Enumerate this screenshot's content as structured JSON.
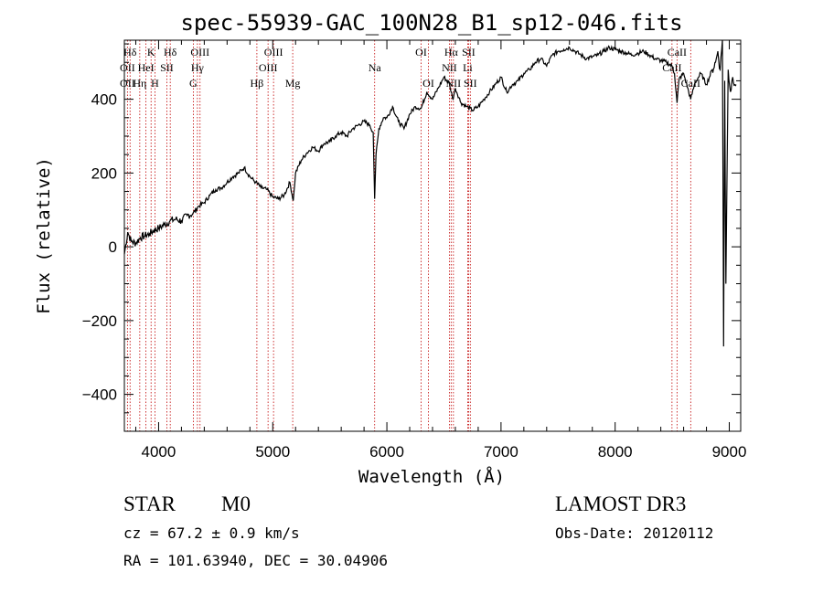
{
  "chart_data": {
    "type": "line",
    "title": "spec-55939-GAC_100N28_B1_sp12-046.fits",
    "xlabel": "Wavelength (Å)",
    "ylabel": "Flux (relative)",
    "xlim": [
      3700,
      9100
    ],
    "ylim": [
      -500,
      560
    ],
    "xticks": [
      4000,
      5000,
      6000,
      7000,
      8000,
      9000
    ],
    "yticks": [
      -400,
      -200,
      0,
      200,
      400
    ],
    "grid": false,
    "series": [
      {
        "x": [
          3700,
          3730,
          3760,
          3800,
          3840,
          3880,
          3920,
          3960,
          4000,
          4050,
          4100,
          4150,
          4200,
          4250,
          4300,
          4350,
          4400,
          4450,
          4500,
          4550,
          4600,
          4650,
          4700,
          4750,
          4800,
          4850,
          4900,
          4950,
          5000,
          5050,
          5100,
          5150,
          5180,
          5200,
          5250,
          5300,
          5350,
          5400,
          5450,
          5500,
          5550,
          5600,
          5650,
          5700,
          5750,
          5800,
          5850,
          5880,
          5893,
          5905,
          5930,
          5970,
          6000,
          6050,
          6100,
          6150,
          6200,
          6250,
          6300,
          6350,
          6400,
          6450,
          6500,
          6550,
          6563,
          6580,
          6600,
          6650,
          6700,
          6750,
          6800,
          6850,
          6900,
          6950,
          7000,
          7050,
          7100,
          7150,
          7200,
          7250,
          7300,
          7350,
          7400,
          7450,
          7500,
          7550,
          7600,
          7650,
          7700,
          7750,
          7800,
          7850,
          7900,
          7950,
          8000,
          8050,
          8100,
          8150,
          8200,
          8250,
          8300,
          8350,
          8400,
          8450,
          8498,
          8520,
          8542,
          8560,
          8600,
          8662,
          8700,
          8750,
          8800,
          8850,
          8880,
          8900,
          8920,
          8940,
          8950,
          8960,
          8970,
          8990,
          9010,
          9030,
          9060
        ],
        "y": [
          -20,
          40,
          15,
          10,
          25,
          30,
          35,
          45,
          50,
          60,
          70,
          75,
          70,
          85,
          90,
          110,
          120,
          140,
          155,
          160,
          175,
          190,
          200,
          215,
          190,
          175,
          160,
          155,
          135,
          130,
          140,
          175,
          125,
          200,
          235,
          255,
          270,
          260,
          280,
          285,
          300,
          310,
          300,
          320,
          330,
          340,
          330,
          310,
          130,
          250,
          320,
          350,
          350,
          380,
          340,
          320,
          360,
          380,
          375,
          420,
          400,
          430,
          460,
          440,
          420,
          400,
          430,
          390,
          380,
          370,
          380,
          400,
          420,
          440,
          460,
          420,
          440,
          450,
          470,
          480,
          500,
          510,
          490,
          520,
          530,
          535,
          540,
          530,
          520,
          510,
          515,
          520,
          530,
          540,
          535,
          530,
          525,
          520,
          525,
          530,
          520,
          510,
          505,
          500,
          490,
          470,
          390,
          455,
          470,
          400,
          445,
          470,
          440,
          480,
          500,
          530,
          480,
          560,
          -270,
          450,
          -100,
          480,
          420,
          460,
          440
        ]
      }
    ],
    "line_labels": [
      {
        "text": "Hδ",
        "x": 3750,
        "row": 1
      },
      {
        "text": "OII",
        "x": 3727,
        "row": 2
      },
      {
        "text": "OII",
        "x": 3727,
        "row": 3
      },
      {
        "text": "K",
        "x": 3934,
        "row": 1
      },
      {
        "text": "HeI",
        "x": 3889,
        "row": 2
      },
      {
        "text": "Hη",
        "x": 3835,
        "row": 3
      },
      {
        "text": "Hδ",
        "x": 4102,
        "row": 1
      },
      {
        "text": "SII",
        "x": 4072,
        "row": 2
      },
      {
        "text": "H",
        "x": 3968,
        "row": 3
      },
      {
        "text": "OIII",
        "x": 4363,
        "row": 1
      },
      {
        "text": "Hγ",
        "x": 4340,
        "row": 2
      },
      {
        "text": "G",
        "x": 4304,
        "row": 3
      },
      {
        "text": "OIII",
        "x": 5007,
        "row": 1
      },
      {
        "text": "OIII",
        "x": 4959,
        "row": 2
      },
      {
        "text": "Hβ",
        "x": 4861,
        "row": 3
      },
      {
        "text": "Mg",
        "x": 5175,
        "row": 3
      },
      {
        "text": "Na",
        "x": 5893,
        "row": 2
      },
      {
        "text": "OI",
        "x": 6300,
        "row": 1
      },
      {
        "text": "OI",
        "x": 6364,
        "row": 3
      },
      {
        "text": "Hα",
        "x": 6563,
        "row": 1
      },
      {
        "text": "SII",
        "x": 6716,
        "row": 1
      },
      {
        "text": "NII",
        "x": 6548,
        "row": 2
      },
      {
        "text": "Li",
        "x": 6708,
        "row": 2
      },
      {
        "text": "NII",
        "x": 6583,
        "row": 3
      },
      {
        "text": "SII",
        "x": 6731,
        "row": 3
      },
      {
        "text": "CaII",
        "x": 8542,
        "row": 1
      },
      {
        "text": "CaII",
        "x": 8498,
        "row": 2
      },
      {
        "text": "CaII",
        "x": 8662,
        "row": 3
      }
    ],
    "line_markers": [
      3727,
      3750,
      3835,
      3889,
      3934,
      3968,
      4072,
      4102,
      4304,
      4340,
      4363,
      4861,
      4959,
      5007,
      5175,
      5893,
      6300,
      6364,
      6548,
      6563,
      6583,
      6708,
      6716,
      6731,
      8498,
      8542,
      8662
    ]
  },
  "info": {
    "object_class": "STAR",
    "subclass": "M0",
    "redshift": "cz = 67.2 ± 0.9 km/s",
    "coords": "RA = 101.63940, DEC =  30.04906",
    "survey": "LAMOST DR3",
    "obs_date": "Obs-Date: 20120112"
  },
  "colors": {
    "spectrum": "#000000",
    "marker": "#c00000",
    "axis": "#000000"
  }
}
